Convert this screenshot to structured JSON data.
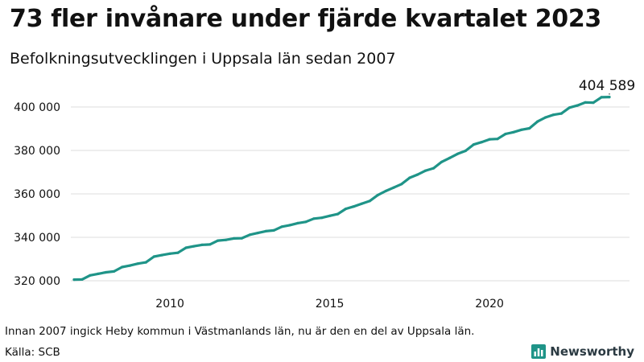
{
  "header": {
    "title": "73 fler invånare under fjärde kvartalet 2023",
    "subtitle": "Befolkningsutvecklingen i Uppsala län sedan 2007"
  },
  "footer": {
    "note": "Innan 2007 ingick Heby kommun i Västmanlands län, nu är den en del av Uppsala län.",
    "source": "Källa: SCB",
    "brand": "Newsworthy"
  },
  "colors": {
    "line": "#1f9488",
    "grid": "#dddddd",
    "text": "#111111",
    "brand_icon": "#1f9488"
  },
  "chart_data": {
    "type": "line",
    "title": "73 fler invånare under fjärde kvartalet 2023",
    "subtitle": "Befolkningsutvecklingen i Uppsala län sedan 2007",
    "xlabel": "",
    "ylabel": "",
    "xlim": [
      2007.0,
      2023.75
    ],
    "ylim": [
      315000,
      405000
    ],
    "y_ticks": [
      320000,
      340000,
      360000,
      380000,
      400000
    ],
    "y_tick_labels": [
      "320 000",
      "340 000",
      "360 000",
      "380 000",
      "400 000"
    ],
    "x_ticks": [
      2010,
      2015,
      2020
    ],
    "x_tick_labels": [
      "2010",
      "2015",
      "2020"
    ],
    "grid": "horizontal",
    "end_label": "404 589",
    "series": [
      {
        "x": [
          2007.0,
          2007.25,
          2007.5,
          2007.75,
          2008.0,
          2008.25,
          2008.5,
          2008.75,
          2009.0,
          2009.25,
          2009.5,
          2009.75,
          2010.0,
          2010.25,
          2010.5,
          2010.75,
          2011.0,
          2011.25,
          2011.5,
          2011.75,
          2012.0,
          2012.25,
          2012.5,
          2012.75,
          2013.0,
          2013.25,
          2013.5,
          2013.75,
          2014.0,
          2014.25,
          2014.5,
          2014.75,
          2015.0,
          2015.25,
          2015.5,
          2015.75,
          2016.0,
          2016.25,
          2016.5,
          2016.75,
          2017.0,
          2017.25,
          2017.5,
          2017.75,
          2018.0,
          2018.25,
          2018.5,
          2018.75,
          2019.0,
          2019.25,
          2019.5,
          2019.75,
          2020.0,
          2020.25,
          2020.5,
          2020.75,
          2021.0,
          2021.25,
          2021.5,
          2021.75,
          2022.0,
          2022.25,
          2022.5,
          2022.75,
          2023.0,
          2023.25,
          2023.5,
          2023.75
        ],
        "values": [
          320500,
          320600,
          322500,
          323200,
          323900,
          324300,
          326300,
          327000,
          327900,
          328500,
          331100,
          331800,
          332500,
          332900,
          335200,
          335900,
          336500,
          336700,
          338500,
          338800,
          339500,
          339600,
          341200,
          342000,
          342800,
          343200,
          344900,
          345600,
          346500,
          347100,
          348600,
          349000,
          349900,
          350700,
          353100,
          354200,
          355500,
          356700,
          359400,
          361300,
          362900,
          364500,
          367400,
          368900,
          370700,
          371800,
          374700,
          376500,
          378400,
          379800,
          382700,
          383800,
          385100,
          385300,
          387600,
          388400,
          389500,
          390200,
          393300,
          395200,
          396400,
          397000,
          399700,
          400700,
          402100,
          402000,
          404500,
          404589
        ]
      }
    ]
  }
}
